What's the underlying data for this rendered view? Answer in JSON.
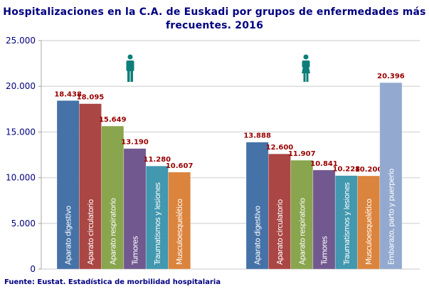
{
  "chart_data": {
    "type": "bar",
    "title": "Hospitalizaciones en la C.A. de Euskadi por  grupos de enfermedades más frecuentes. 2016",
    "source": "Fuente: Eustat. Estadística de morbilidad hospitalaria",
    "ylim": [
      0,
      25000
    ],
    "yticks": [
      0,
      5000,
      10000,
      15000,
      20000,
      25000
    ],
    "ytick_labels": [
      "0",
      "5.000",
      "10.000",
      "15.000",
      "20.000",
      "25.000"
    ],
    "grid": true,
    "groups": [
      {
        "icon": "male-icon",
        "bars": [
          {
            "label": "Aparato digestivo",
            "value": 18438,
            "value_label": "18.438",
            "color": "#4572A7"
          },
          {
            "label": "Aparato circulatorio",
            "value": 18095,
            "value_label": "18.095",
            "color": "#AA4643"
          },
          {
            "label": "Aparato respiratorio",
            "value": 15649,
            "value_label": "15.649",
            "color": "#89A54E"
          },
          {
            "label": "Tumores",
            "value": 13190,
            "value_label": "13.190",
            "color": "#71588F"
          },
          {
            "label": "Traumatismos y lesiones",
            "value": 11280,
            "value_label": "11.280",
            "color": "#4198AF"
          },
          {
            "label": "Musculoesquelético",
            "value": 10607,
            "value_label": "10.607",
            "color": "#DB843D"
          }
        ]
      },
      {
        "icon": "female-icon",
        "bars": [
          {
            "label": "Aparato digestivo",
            "value": 13888,
            "value_label": "13.888",
            "color": "#4572A7"
          },
          {
            "label": "Aparato circulatorio",
            "value": 12600,
            "value_label": "12.600",
            "color": "#AA4643"
          },
          {
            "label": "Aparato respiratorio",
            "value": 11907,
            "value_label": "11.907",
            "color": "#89A54E"
          },
          {
            "label": "Tumores",
            "value": 10841,
            "value_label": "10.841",
            "color": "#71588F"
          },
          {
            "label": "Traumatismos y lesiones",
            "value": 10228,
            "value_label": "10.228",
            "color": "#4198AF"
          },
          {
            "label": "Musculoesquelético",
            "value": 10200,
            "value_label": "10.200",
            "color": "#DB843D"
          },
          {
            "label": "Embarazo, parto y puerperio",
            "value": 20396,
            "value_label": "20.396",
            "color": "#93A9CF"
          }
        ]
      }
    ],
    "colors": {
      "title": "#000080",
      "value_label": "#990000",
      "icon": "#0E7E7A",
      "axis_text": "#000080"
    }
  }
}
